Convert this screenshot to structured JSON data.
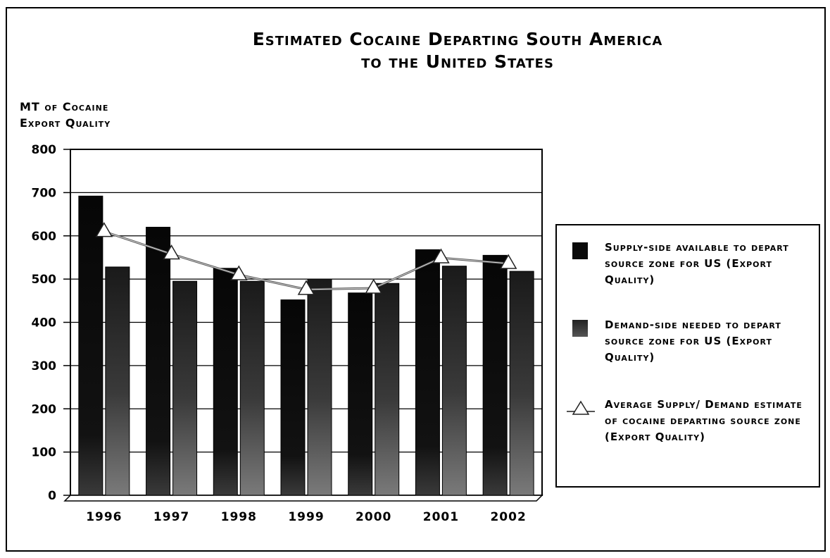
{
  "title_line1": "Estimated Cocaine Departing South America",
  "title_line2": "to the United States",
  "ylabel_line1": "MT of Cocaine",
  "ylabel_line2": "Export Quality",
  "colors": {
    "supply": "#0a0a0a",
    "demand": "#2a2a2a",
    "average_line": "#555555",
    "average_marker": "#ffffff"
  },
  "legend": {
    "supply": "Supply-side available to depart source zone for US (Export Quality)",
    "demand": "Demand-side needed to depart source zone for US (Export Quality)",
    "average": "Average Supply/ Demand estimate of cocaine departing source zone (Export Quality)"
  },
  "chart_data": {
    "type": "bar",
    "title": "Estimated Cocaine Departing South America to the United States",
    "ylabel": "MT of Cocaine Export Quality",
    "xlabel": "",
    "categories": [
      "1996",
      "1997",
      "1998",
      "1999",
      "2000",
      "2001",
      "2002"
    ],
    "series": [
      {
        "name": "Supply-side available to depart source zone for US (Export Quality)",
        "type": "bar",
        "values": [
          692,
          620,
          525,
          452,
          468,
          568,
          555
        ]
      },
      {
        "name": "Demand-side needed to depart source zone for US (Export Quality)",
        "type": "bar",
        "values": [
          528,
          495,
          495,
          500,
          490,
          530,
          518
        ]
      },
      {
        "name": "Average Supply/ Demand estimate of cocaine departing source zone (Export Quality)",
        "type": "line",
        "values": [
          610,
          558,
          510,
          476,
          479,
          549,
          536
        ]
      }
    ],
    "ylim": [
      0,
      800
    ],
    "yticks": [
      "0",
      "100",
      "200",
      "300",
      "400",
      "500",
      "600",
      "700",
      "800"
    ],
    "grid": true,
    "legend_position": "right"
  }
}
